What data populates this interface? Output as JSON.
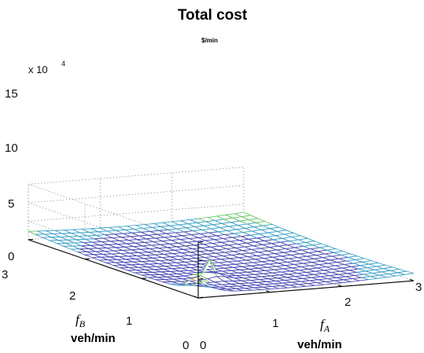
{
  "chart_data": {
    "type": "surface",
    "title": "Total cost",
    "z_unit": "$/min",
    "z_multiplier": "x 10",
    "z_multiplier_exponent": "4",
    "x_axis": {
      "name": "f",
      "subscript": "A",
      "unit": "veh/min",
      "range": [
        0,
        3
      ],
      "ticks": [
        "0",
        "1",
        "2",
        "3"
      ]
    },
    "y_axis": {
      "name": "f",
      "subscript": "B",
      "unit": "veh/min",
      "range": [
        0,
        3
      ],
      "ticks": [
        "0",
        "1",
        "2",
        "3"
      ]
    },
    "z_axis": {
      "range": [
        0,
        15
      ],
      "ticks": [
        "0",
        "5",
        "10",
        "15"
      ]
    },
    "grid": true,
    "mesh_resolution": 24,
    "surface_samples": [
      {
        "fA": 0,
        "fB": 3,
        "z": 3.5
      },
      {
        "fA": 3,
        "fB": 3,
        "z": 4.2
      },
      {
        "fA": 3,
        "fB": 0,
        "z": 3.8
      },
      {
        "fA": 0.25,
        "fB": 0.25,
        "z": 5.5
      },
      {
        "fA": 1.3,
        "fB": 1.2,
        "z": 0.2
      }
    ],
    "colormap": [
      "#4848b4",
      "#3aa0c8",
      "#66c466",
      "#c0a040",
      "#b83020"
    ]
  }
}
